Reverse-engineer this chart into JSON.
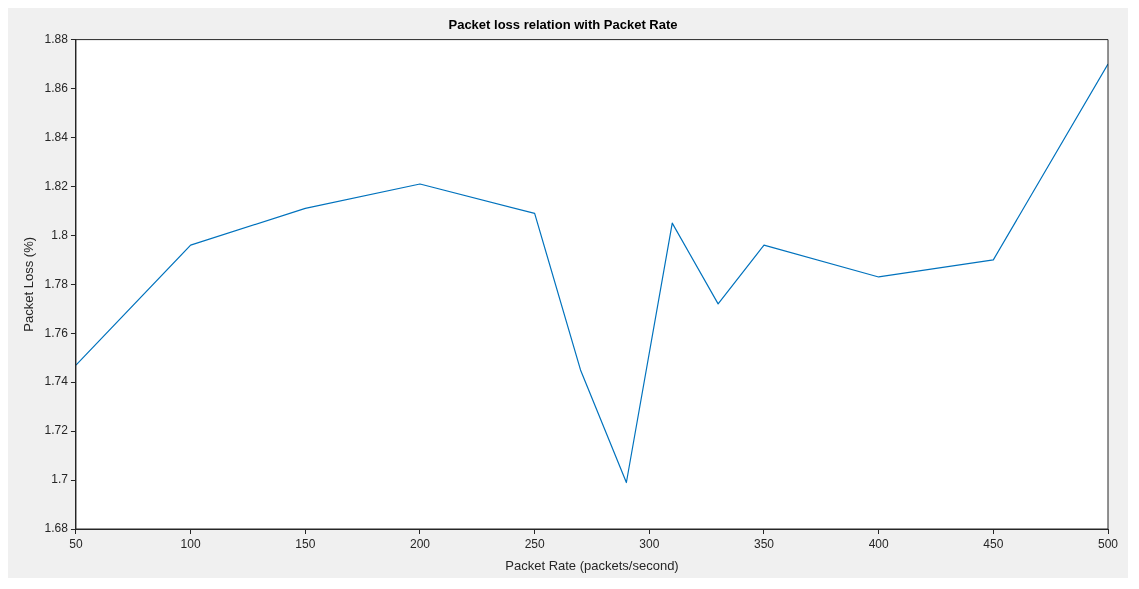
{
  "chart_data": {
    "type": "line",
    "title": "Packet loss relation with Packet Rate",
    "xlabel": "Packet Rate (packets/second)",
    "ylabel": "Packet Loss (%)",
    "x": [
      50,
      100,
      150,
      200,
      250,
      270,
      290,
      310,
      330,
      350,
      400,
      450,
      500
    ],
    "values": [
      1.747,
      1.796,
      1.811,
      1.821,
      1.809,
      1.745,
      1.699,
      1.805,
      1.772,
      1.796,
      1.783,
      1.79,
      1.87
    ],
    "color": "#0072bd",
    "xlim": [
      50,
      500
    ],
    "ylim": [
      1.68,
      1.88
    ],
    "xticks": [
      50,
      100,
      150,
      200,
      250,
      300,
      350,
      400,
      450,
      500
    ],
    "yticks": [
      1.68,
      1.7,
      1.72,
      1.74,
      1.76,
      1.78,
      1.8,
      1.82,
      1.84,
      1.86,
      1.88
    ]
  }
}
